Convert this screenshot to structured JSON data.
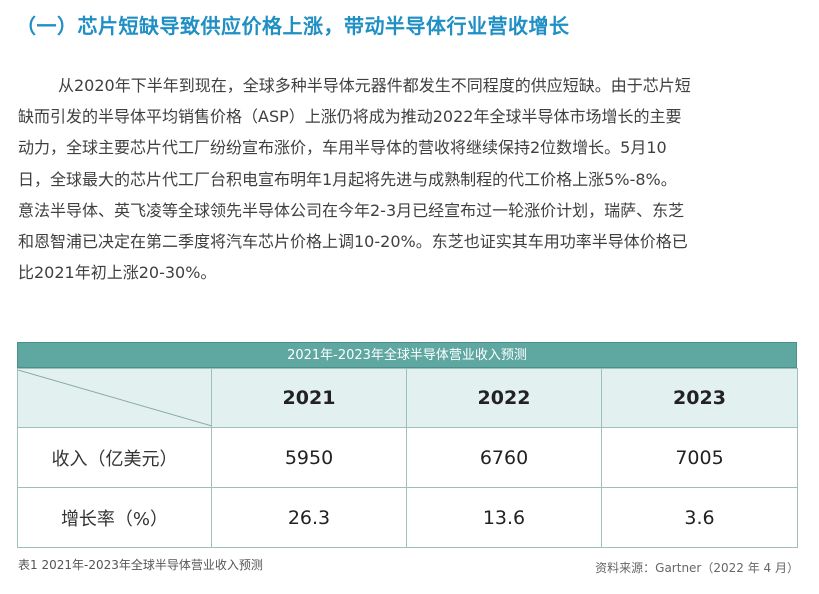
{
  "heading": "（一）芯片短缺导致供应价格上涨，带动半导体行业营收增长",
  "paragraph_lines": [
    "从2020年下半年到现在，全球多种半导体元器件都发生不同程度的供应短缺。由于芯片短",
    "缺而引发的半导体平均销售价格（ASP）上涨仍将成为推动2022年全球半导体市场增长的主要",
    "动力，全球主要芯片代工厂纷纷宣布涨价，车用半导体的营收将继续保持2位数增长。5月10",
    "日，全球最大的芯片代工厂台积电宣布明年1月起将先进与成熟制程的代工价格上涨5%-8%。",
    "意法半导体、英飞凌等全球领先半导体公司在今年2-3月已经宣布过一轮涨价计划，瑞萨、东芝",
    "和恩智浦已决定在第二季度将汽车芯片价格上调10-20%。东芝也证实其车用功率半导体价格已",
    "比2021年初上涨20-30%。"
  ],
  "table": {
    "title": "2021年-2023年全球半导体营业收入预测",
    "years": [
      "2021",
      "2022",
      "2023"
    ],
    "rows": [
      {
        "label": "收入（亿美元）",
        "values": [
          "5950",
          "6760",
          "7005"
        ]
      },
      {
        "label": "增长率（%）",
        "values": [
          "26.3",
          "13.6",
          "3.6"
        ]
      }
    ]
  },
  "caption": "表1  2021年-2023年全球半导体营业收入预测",
  "source": "资料来源：Gartner（2022 年 4 月）",
  "colors": {
    "heading": "#1f8fc4",
    "table_title_bg": "#5fa7a1",
    "header_bg": "#e2f1f0"
  }
}
